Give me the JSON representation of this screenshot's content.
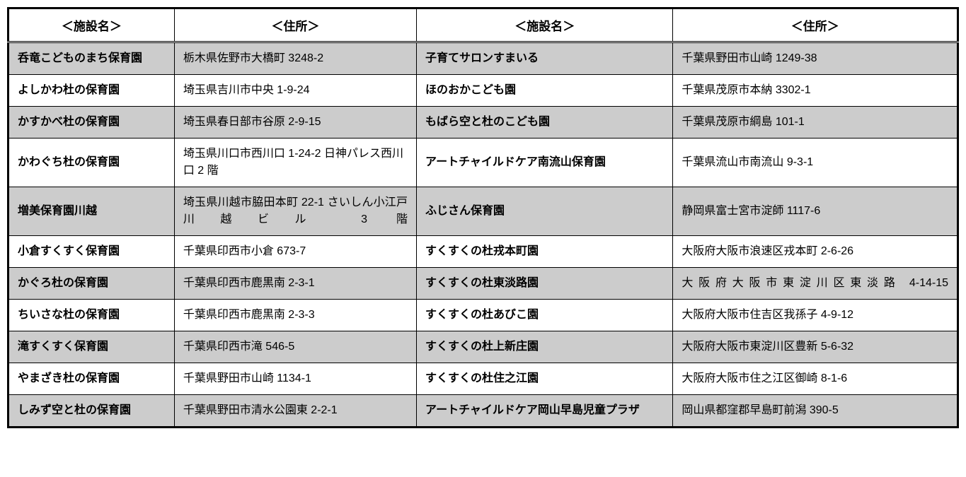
{
  "headers": {
    "name1": "＜施設名＞",
    "addr1": "＜住所＞",
    "name2": "＜施設名＞",
    "addr2": "＜住所＞"
  },
  "rows": [
    {
      "shade": true,
      "name1": "呑竜こどものまち保育園",
      "addr1": "栃木県佐野市大橋町 3248-2",
      "name2": "子育てサロンすまいる",
      "addr2": "千葉県野田市山崎 1249-38"
    },
    {
      "shade": false,
      "name1": "よしかわ杜の保育園",
      "addr1": "埼玉県吉川市中央 1-9-24",
      "name2": "ほのおかこども園",
      "addr2": "千葉県茂原市本納 3302-1"
    },
    {
      "shade": true,
      "name1": "かすかべ杜の保育園",
      "addr1": "埼玉県春日部市谷原 2-9-15",
      "name2": "もばら空と杜のこども園",
      "addr2": "千葉県茂原市綱島 101-1"
    },
    {
      "shade": false,
      "name1": "かわぐち杜の保育園",
      "addr1": "埼玉県川口市西川口 1-24-2 日神パレス西川口 2 階",
      "name2": "アートチャイルドケア南流山保育園",
      "addr2": "千葉県流山市南流山 9-3-1"
    },
    {
      "shade": true,
      "name1": "増美保育園川越",
      "addr1": "埼玉県川越市脇田本町 22-1 さいしん小江戸川越ビル 3 階",
      "addr1_justify": true,
      "name2": "ふじさん保育園",
      "addr2": "静岡県富士宮市淀師 1117-6"
    },
    {
      "shade": false,
      "name1": "小倉すくすく保育園",
      "addr1": "千葉県印西市小倉 673-7",
      "name2": "すくすくの杜戎本町園",
      "addr2": "大阪府大阪市浪速区戎本町 2-6-26"
    },
    {
      "shade": true,
      "name1": "かぐろ杜の保育園",
      "addr1": "千葉県印西市鹿黒南 2-3-1",
      "name2": "すくすくの杜東淡路園",
      "addr2": "大阪府大阪市東淀川区東淡路 4-14-15",
      "addr2_justify": true
    },
    {
      "shade": false,
      "name1": "ちいさな杜の保育園",
      "addr1": "千葉県印西市鹿黒南 2-3-3",
      "name2": "すくすくの杜あびこ園",
      "addr2": "大阪府大阪市住吉区我孫子 4-9-12"
    },
    {
      "shade": true,
      "name1": "滝すくすく保育園",
      "addr1": "千葉県印西市滝 546-5",
      "name2": "すくすくの杜上新庄園",
      "addr2": "大阪府大阪市東淀川区豊新 5-6-32"
    },
    {
      "shade": false,
      "name1": "やまざき杜の保育園",
      "addr1": "千葉県野田市山崎 1134-1",
      "name2": "すくすくの杜住之江園",
      "addr2": "大阪府大阪市住之江区御崎 8-1-6"
    },
    {
      "shade": true,
      "name1": "しみず空と杜の保育園",
      "addr1": "千葉県野田市清水公園東 2-2-1",
      "name2": "アートチャイルドケア岡山早島児童プラザ",
      "addr2": "岡山県都窪郡早島町前潟 390-5"
    }
  ]
}
